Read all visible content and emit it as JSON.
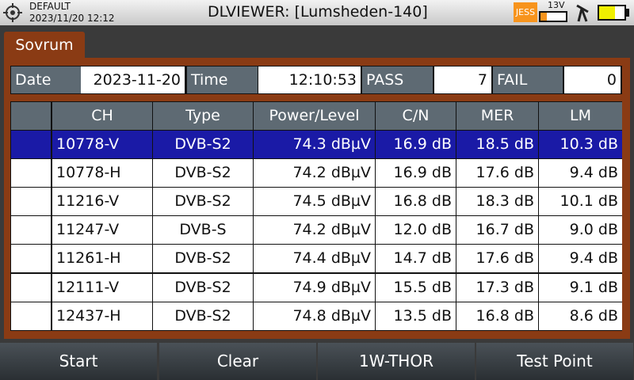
{
  "header": {
    "profile": "DEFAULT",
    "datetime": "2023/11/20 12:12",
    "title": "DLVIEWER: [Lumsheden-140]",
    "badge": "JESS",
    "voltage": "13V"
  },
  "tab": "Sovrum",
  "info": [
    {
      "label": "Date",
      "value": "2023-11-20"
    },
    {
      "label": "Time",
      "value": "12:10:53"
    },
    {
      "label": "PASS",
      "value": 7
    },
    {
      "label": "FAIL",
      "value": 0
    }
  ],
  "table": {
    "columns": [
      "CH",
      "Type",
      "Power/Level",
      "C/N",
      "MER",
      "LM"
    ],
    "rows": [
      [
        "10778-V",
        "DVB-S2",
        "74.3 dBµV",
        "16.9 dB",
        "18.5 dB",
        "10.3 dB"
      ],
      [
        "10778-H",
        "DVB-S2",
        "74.2 dBµV",
        "16.9 dB",
        "17.6 dB",
        "9.4 dB"
      ],
      [
        "11216-V",
        "DVB-S2",
        "74.5 dBµV",
        "16.8 dB",
        "18.3 dB",
        "10.1 dB"
      ],
      [
        "11247-V",
        "DVB-S",
        "74.2 dBµV",
        "12.0 dB",
        "16.7 dB",
        "9.0 dB"
      ],
      [
        "11261-H",
        "DVB-S2",
        "74.4 dBµV",
        "14.7 dB",
        "17.6 dB",
        "9.4 dB"
      ],
      [
        "12111-V",
        "DVB-S2",
        "74.9 dBµV",
        "15.5 dB",
        "17.3 dB",
        "9.1 dB"
      ],
      [
        "12437-H",
        "DVB-S2",
        "74.8 dBµV",
        "13.5 dB",
        "16.8 dB",
        "8.6 dB"
      ]
    ]
  },
  "buttons": [
    "Start",
    "Clear",
    "1W-THOR",
    "Test Point"
  ]
}
